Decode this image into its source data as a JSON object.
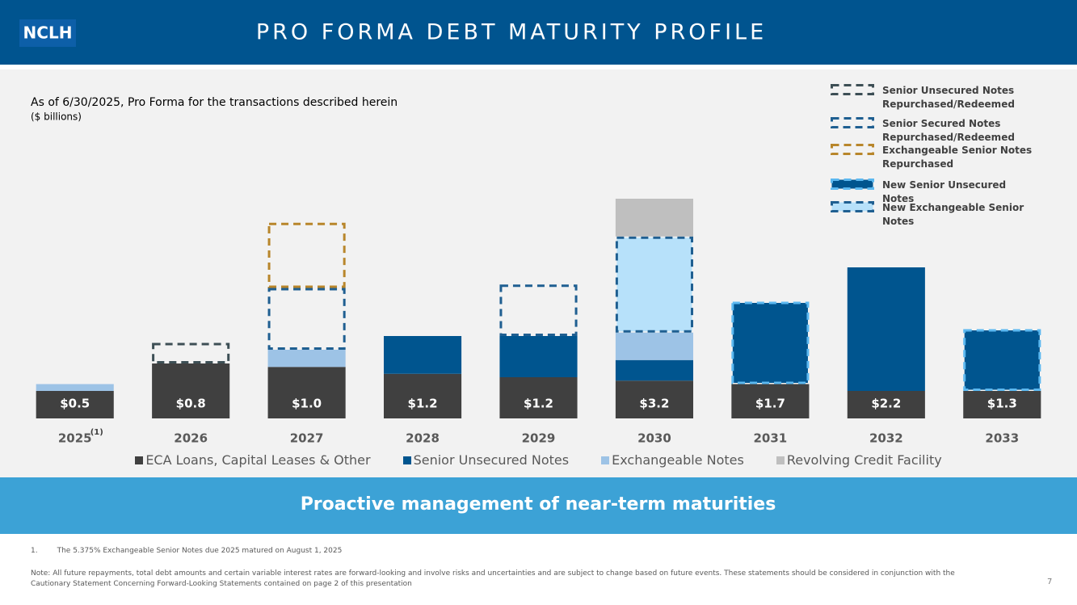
{
  "header": {
    "logo": "NCLH",
    "title": "PRO FORMA DEBT MATURITY PROFILE"
  },
  "chart_data": {
    "type": "bar",
    "stacked": true,
    "title": "As of 6/30/2025, Pro Forma for the transactions described herein",
    "subtitle": "($ billions)",
    "categories": [
      "2025",
      "2026",
      "2027",
      "2028",
      "2029",
      "2030",
      "2031",
      "2032",
      "2033"
    ],
    "category_marks": [
      "(1)",
      null,
      null,
      null,
      null,
      null,
      null,
      null,
      null
    ],
    "ylim": [
      0,
      4.2
    ],
    "series": [
      {
        "name": "ECA Loans, Capital Leases & Other",
        "color": "#404040",
        "values": [
          0.4,
          0.8,
          0.75,
          0.65,
          0.6,
          0.55,
          0.5,
          0.4,
          0.4
        ]
      },
      {
        "name": "Senior Unsecured Notes",
        "color": "#00558f",
        "values": [
          null,
          null,
          null,
          0.55,
          0.6,
          0.3,
          null,
          1.8,
          null
        ]
      },
      {
        "name": "Exchangeable Notes",
        "color": "#9dc3e6",
        "values": [
          0.1,
          null,
          0.25,
          null,
          null,
          0.4,
          null,
          null,
          null
        ]
      },
      {
        "name": "Revolving Credit Facility",
        "color": "#bfbfbf",
        "values": [
          null,
          null,
          null,
          null,
          null,
          0.55,
          null,
          null,
          null
        ]
      }
    ],
    "overlays": [
      {
        "name": "Senior Unsecured Notes Repurchased/Redeemed",
        "fill": null,
        "border": "#3d4f55",
        "values": [
          null,
          0.3,
          null,
          null,
          null,
          null,
          null,
          null,
          null
        ]
      },
      {
        "name": "Senior Secured Notes Repurchased/Redeemed",
        "fill": null,
        "border": "#1f5f91",
        "values": [
          null,
          null,
          0.9,
          null,
          0.75,
          null,
          null,
          null,
          null
        ]
      },
      {
        "name": "Exchangeable Senior Notes Repurchased",
        "fill": null,
        "border": "#b8862b",
        "values": [
          null,
          null,
          0.95,
          null,
          null,
          null,
          null,
          null,
          null
        ]
      },
      {
        "name": "New Senior Unsecured Notes",
        "fill": "#00558f",
        "border": "#5bb8f0",
        "values": [
          null,
          null,
          null,
          null,
          null,
          null,
          1.2,
          null,
          0.9
        ]
      },
      {
        "name": "New Exchangeable Senior Notes",
        "fill": "#b7e1fa",
        "border": "#1f5f91",
        "values": [
          null,
          null,
          null,
          null,
          null,
          1.4,
          null,
          null,
          null
        ]
      }
    ],
    "totals": {
      "values": [
        0.5,
        0.8,
        1.0,
        1.2,
        1.2,
        3.2,
        1.7,
        2.2,
        1.3
      ],
      "value_labels": [
        "$0.5",
        "$0.8",
        "$1.0",
        "$1.2",
        "$1.2",
        "$3.2",
        "$1.7",
        "$2.2",
        "$1.3"
      ]
    }
  },
  "banner": "Proactive management of near-term maturities",
  "footnotes": [
    {
      "number": "1.",
      "text": "The 5.375% Exchangeable Senior Notes due 2025 matured on August 1, 2025"
    }
  ],
  "note": "Note: All future repayments, total debt amounts and certain variable interest rates are forward-looking and involve risks and uncertainties and are subject to change based on future events. These statements should be considered in conjunction with the Cautionary Statement Concerning Forward-Looking Statements contained on page 2 of this presentation",
  "page_number": "7"
}
